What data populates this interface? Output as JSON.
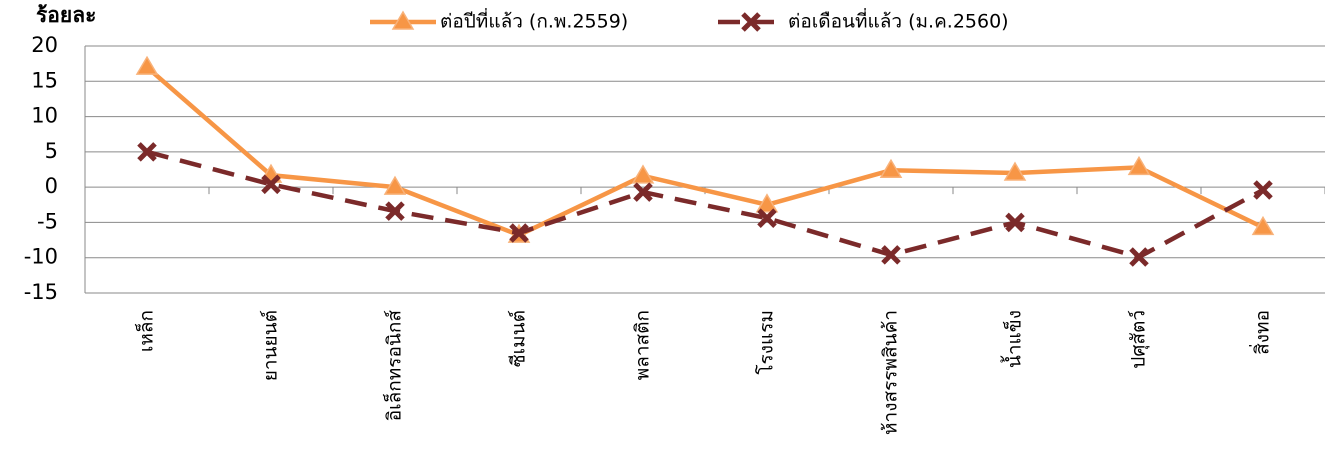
{
  "chart_data": {
    "type": "line",
    "y_label": "ร้อยละ",
    "categories": [
      "เหล็ก",
      "ยานยนต์",
      "อิเล็กทรอนิกส์",
      "ซีเมนต์",
      "พลาสติก",
      "โรงแรม",
      "ห้างสรรพสินค้า",
      "น้ำแข็ง",
      "ปศุสัตว์",
      "สิ่งทอ"
    ],
    "series": [
      {
        "name": "ต่อปีที่แล้ว (ก.พ.2559)",
        "color": "#f79646",
        "marker": "triangle",
        "dash": false,
        "values": [
          17.0,
          1.7,
          0.0,
          -6.8,
          1.6,
          -2.5,
          2.4,
          2.0,
          2.8,
          -5.7
        ]
      },
      {
        "name": "ต่อเดือนที่แล้ว (ม.ค.2560)",
        "color": "#7b2a2a",
        "marker": "x",
        "dash": true,
        "values": [
          5.0,
          0.4,
          -3.4,
          -6.5,
          -0.7,
          -4.4,
          -9.6,
          -5.0,
          -9.9,
          -0.4
        ]
      }
    ],
    "ylim": [
      -15,
      20
    ],
    "yticks": [
      -15,
      -10,
      -5,
      0,
      5,
      10,
      15,
      20
    ],
    "grid": true
  }
}
